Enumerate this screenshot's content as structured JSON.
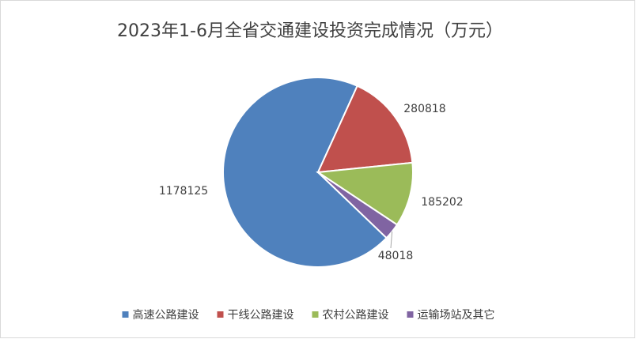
{
  "chart_data": {
    "type": "pie",
    "title": "2023年1-6月全省交通建设投资完成情况（万元）",
    "categories": [
      "高速公路建设",
      "干线公路建设",
      "农村公路建设",
      "运输场站及其它"
    ],
    "values": [
      1178125,
      280818,
      185202,
      48018
    ],
    "colors": [
      "#4f81bd",
      "#c0504d",
      "#9bbb59",
      "#8064a2"
    ],
    "legend": "bottom"
  }
}
